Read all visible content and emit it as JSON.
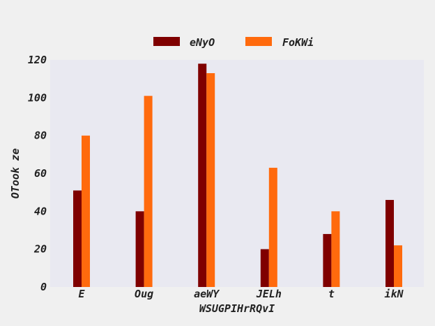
{
  "chart_data": {
    "type": "bar",
    "title": "",
    "xlabel": "WSUGPIHrRQvI",
    "ylabel": "OTook ze",
    "categories": [
      "E",
      "Oug",
      "aeWY",
      "JELh",
      "t",
      "ikN"
    ],
    "series": [
      {
        "name": "eNyO",
        "values": [
          51,
          40,
          118,
          20,
          28,
          46
        ],
        "color": "#7f0000"
      },
      {
        "name": "FoKWi",
        "values": [
          80,
          101,
          113,
          63,
          40,
          22
        ],
        "color": "#ff6a0d"
      }
    ],
    "ylim": [
      0,
      120
    ],
    "yticks": [
      0,
      20,
      40,
      60,
      80,
      100,
      120
    ],
    "grid": false,
    "legend_position": "top-center",
    "background_color": "#e9e9f1"
  }
}
